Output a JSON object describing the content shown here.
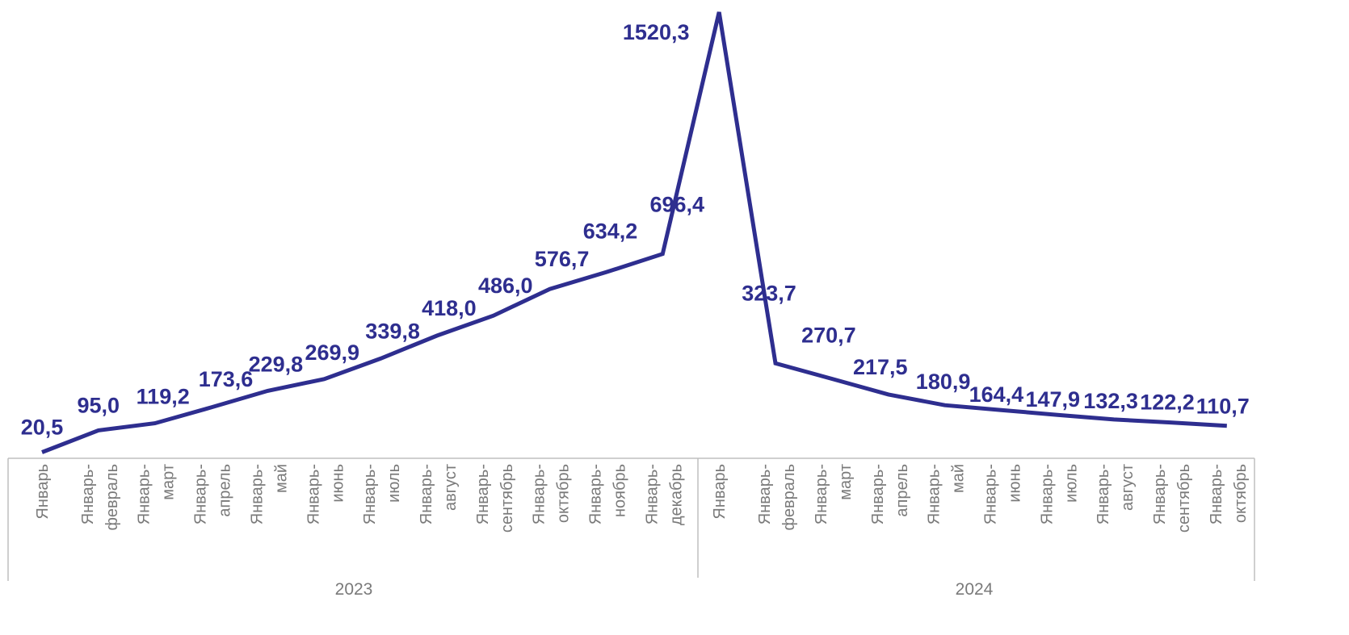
{
  "chart_data": {
    "type": "line",
    "title": "",
    "xlabel": "",
    "ylabel": "",
    "ylim": [
      0,
      1550
    ],
    "grid": false,
    "legend": "none",
    "line_color": "#2e2e8f",
    "label_color": "#2e2e8f",
    "axis_text_color": "#7a7a7a",
    "axis_line_color": "#bfbfbf",
    "groups": [
      {
        "label": "2023",
        "start": 0,
        "end": 12
      },
      {
        "label": "2024",
        "start": 12,
        "end": 22
      }
    ],
    "categories": [
      [
        "Январь"
      ],
      [
        "Январь-",
        "февраль"
      ],
      [
        "Январь-",
        "март"
      ],
      [
        "Январь-",
        "апрель"
      ],
      [
        "Январь-",
        "май"
      ],
      [
        "Январь-",
        "июнь"
      ],
      [
        "Январь-",
        "июль"
      ],
      [
        "Январь-",
        "август"
      ],
      [
        "Январь-",
        "сентябрь"
      ],
      [
        "Январь-",
        "октябрь"
      ],
      [
        "Январь-",
        "ноябрь"
      ],
      [
        "Январь-",
        "декабрь"
      ],
      [
        "Январь"
      ],
      [
        "Январь-",
        "февраль"
      ],
      [
        "Январь-",
        "март"
      ],
      [
        "Январь-",
        "апрель"
      ],
      [
        "Январь-",
        "май"
      ],
      [
        "Январь-",
        "июнь"
      ],
      [
        "Январь-",
        "июль"
      ],
      [
        "Январь-",
        "август"
      ],
      [
        "Январь-",
        "сентябрь"
      ],
      [
        "Январь-",
        "октябрь"
      ]
    ],
    "values": [
      20.5,
      95.0,
      119.2,
      173.6,
      229.8,
      269.9,
      339.8,
      418.0,
      486.0,
      576.7,
      634.2,
      696.4,
      1520.3,
      323.7,
      270.7,
      217.5,
      180.9,
      164.4,
      147.9,
      132.3,
      122.2,
      110.7
    ],
    "value_labels": [
      "20,5",
      "95,0",
      "119,2",
      "173,6",
      "229,8",
      "269,9",
      "339,8",
      "418,0",
      "486,0",
      "576,7",
      "634,2",
      "696,4",
      "1520,3",
      "323,7",
      "270,7",
      "217,5",
      "180,9",
      "164,4",
      "147,9",
      "132,3",
      "122,2",
      "110,7"
    ]
  }
}
